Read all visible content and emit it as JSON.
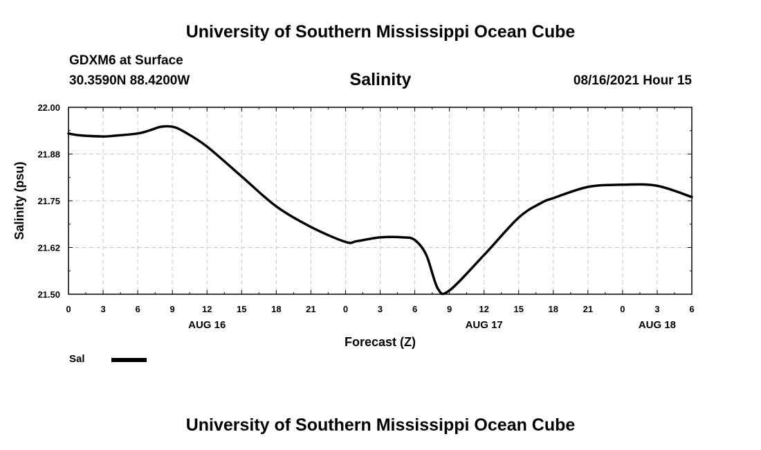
{
  "header": {
    "title_top": "University of Southern Mississippi Ocean Cube",
    "station": "GDXM6 at Surface",
    "coords": "30.3590N  88.4200W",
    "chart_title": "Salinity",
    "timestamp": "08/16/2021 Hour 15"
  },
  "footer": {
    "title_bottom": "University of Southern Mississippi Ocean Cube"
  },
  "legend": {
    "label": "Sal",
    "color": "#000000"
  },
  "chart_data": {
    "type": "line",
    "title": "Salinity",
    "xlabel": "Forecast (Z)",
    "ylabel": "Salinity (psu)",
    "xlim": [
      0,
      54
    ],
    "ylim": [
      21.5,
      22.0
    ],
    "grid": true,
    "x_tick_labels": [
      "0",
      "3",
      "6",
      "9",
      "12",
      "15",
      "18",
      "21",
      "0",
      "3",
      "6",
      "9",
      "12",
      "15",
      "18",
      "21",
      "0",
      "3",
      "6"
    ],
    "y_tick_labels": [
      "22.00",
      "21.88",
      "21.75",
      "21.62",
      "21.50"
    ],
    "day_labels": [
      {
        "label": "AUG 16",
        "hour": 12
      },
      {
        "label": "AUG 17",
        "hour": 36
      },
      {
        "label": "AUG 18",
        "hour": 51
      }
    ],
    "series": [
      {
        "name": "Sal",
        "x": [
          0,
          1,
          3,
          4,
          6,
          7,
          8,
          9,
          10,
          12,
          15,
          18,
          21,
          24,
          25,
          27,
          29,
          30,
          31,
          32,
          33,
          36,
          39,
          41,
          42,
          45,
          48,
          51,
          54
        ],
        "values": [
          21.93,
          21.925,
          21.922,
          21.924,
          21.93,
          21.938,
          21.948,
          21.948,
          21.935,
          21.895,
          21.815,
          21.735,
          21.68,
          21.64,
          21.642,
          21.652,
          21.652,
          21.645,
          21.605,
          21.515,
          21.51,
          21.605,
          21.705,
          21.745,
          21.757,
          21.787,
          21.793,
          21.79,
          21.76
        ]
      }
    ]
  }
}
